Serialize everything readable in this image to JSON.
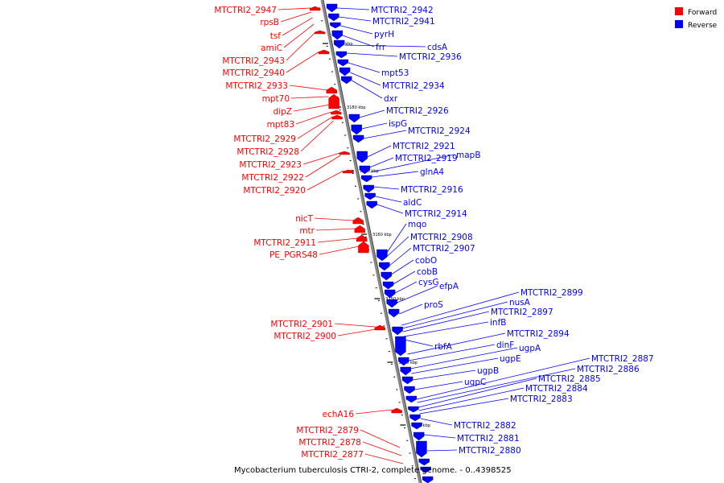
{
  "legend": {
    "forward_label": "Forward",
    "reverse_label": "Reverse",
    "forward_color": "#ff0000",
    "reverse_color": "#0000ff"
  },
  "caption": "Mycobacterium tuberculosis CTRI-2, complete genome. - 0..4398525",
  "scale_labels": [
    "3190 kbp",
    "3180 kbp",
    "3170 kbp",
    "3160 kbp",
    "3150 kbp",
    "3140 kbp",
    "3130 kbp"
  ],
  "forward_genes": [
    "MTCTRI2_2947",
    "rpsB",
    "tsf",
    "amiC",
    "MTCTRI2_2943",
    "MTCTRI2_2940",
    "MTCTRI2_2933",
    "mpt70",
    "dipZ",
    "mpt83",
    "MTCTRI2_2929",
    "MTCTRI2_2928",
    "MTCTRI2_2923",
    "MTCTRI2_2922",
    "MTCTRI2_2920",
    "nicT",
    "mtr",
    "MTCTRI2_2911",
    "PE_PGRS48",
    "MTCTRI2_2901",
    "MTCTRI2_2900",
    "echA16",
    "MTCTRI2_2879",
    "MTCTRI2_2878",
    "MTCTRI2_2877"
  ],
  "reverse_genes": [
    "MTCTRI2_2942",
    "MTCTRI2_2941",
    "pyrH",
    "frr",
    "cdsA",
    "MTCTRI2_2936",
    "mpt53",
    "MTCTRI2_2934",
    "dxr",
    "MTCTRI2_2926",
    "ispG",
    "MTCTRI2_2924",
    "MTCTRI2_2921",
    "MTCTRI2_2919",
    "mapB",
    "glnA4",
    "MTCTRI2_2916",
    "aldC",
    "MTCTRI2_2914",
    "mqo",
    "MTCTRI2_2908",
    "MTCTRI2_2907",
    "cobO",
    "cobB",
    "cysG",
    "efpA",
    "proS",
    "MTCTRI2_2899",
    "nusA",
    "MTCTRI2_2897",
    "infB",
    "rbfA",
    "MTCTRI2_2894",
    "dinF",
    "ugpA",
    "ugpE",
    "ugpB",
    "ugpC",
    "MTCTRI2_2887",
    "MTCTRI2_2886",
    "MTCTRI2_2885",
    "MTCTRI2_2884",
    "MTCTRI2_2883",
    "MTCTRI2_2882",
    "MTCTRI2_2881",
    "MTCTRI2_2880"
  ]
}
